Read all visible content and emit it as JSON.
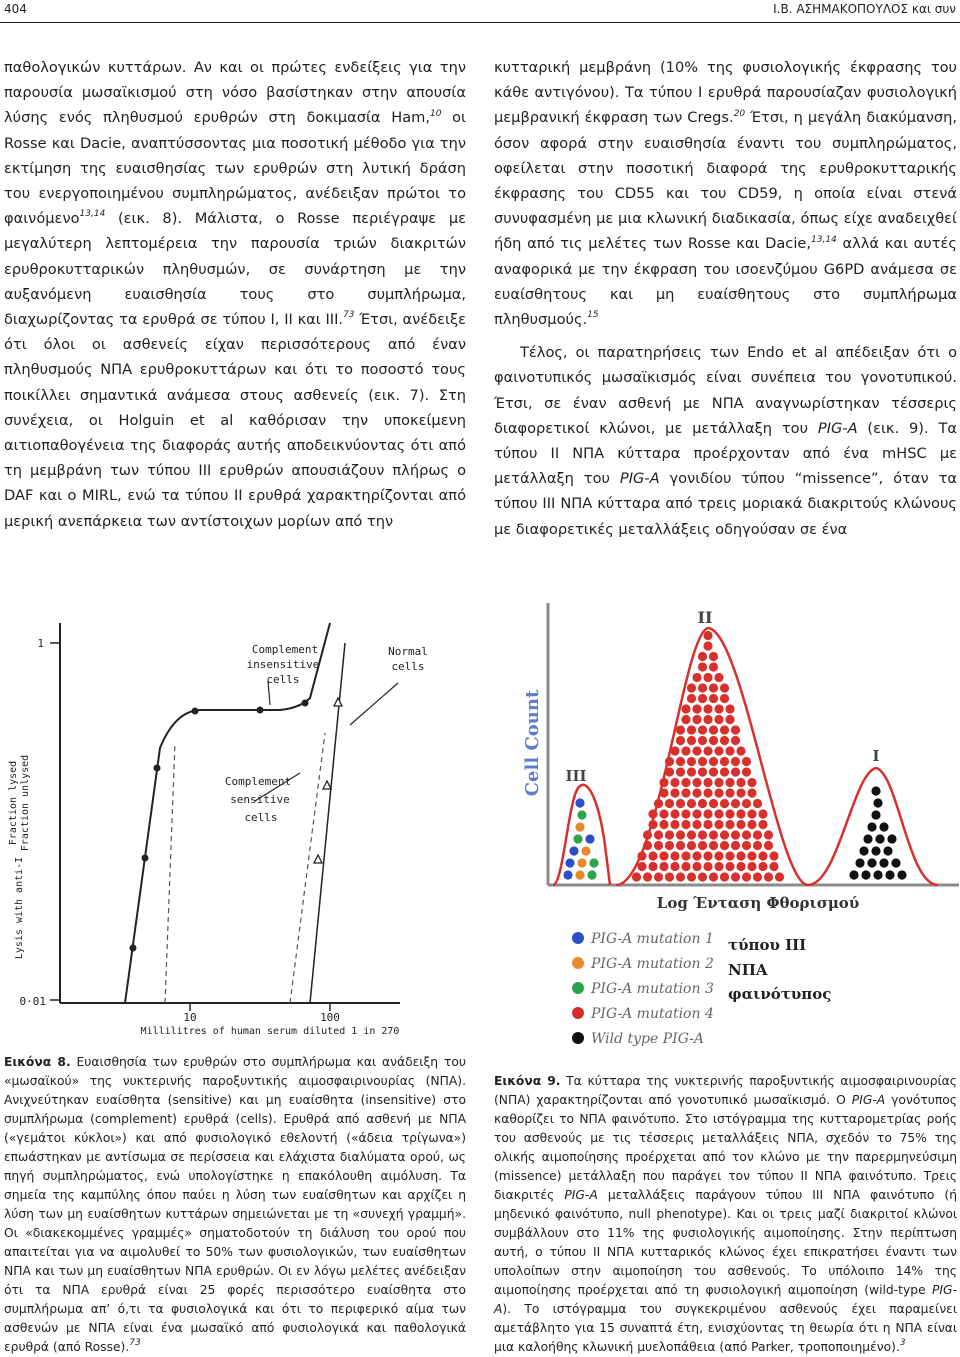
{
  "header": {
    "page_number": "404",
    "running_head": "Ι.Β. ΑΣΗΜΑΚΟΠΟΥΛΟΣ και συν"
  },
  "left_column": {
    "p1_a": "παθολογικών κυττάρων. Αν και οι πρώτες ενδείξεις για την παρουσία μωσαϊκισμού στη νόσο βασίστηκαν στην απουσία λύσης ενός πληθυσμού ερυθρών στη δοκιμασία Ham,",
    "p1_sup1": "10",
    "p1_b": " οι Rosse και Dacie, αναπτύσσοντας μια ποσοτική μέθοδο για την εκτίμηση της ευαισθησίας των ερυθρών στη λυτική δράση του ενεργοποιημένου συμπληρώματος, ανέδειξαν πρώτοι το φαινόμενο",
    "p1_sup2": "13,14",
    "p1_c": " (εικ. 8). Μάλιστα, ο Rosse περιέγραψε με μεγαλύτερη λεπτομέρεια την παρουσία τριών διακριτών ερυθροκυτταρικών πληθυσμών, σε συνάρτηση με την αυξανόμενη ευαισθησία τους στο συμπλήρωμα, διαχωρίζοντας τα ερυθρά σε τύπου I, II και III.",
    "p1_sup3": "73",
    "p1_d": " Έτσι, ανέδειξε ότι όλοι οι ασθενείς είχαν περισσότερους από έναν πληθυσμούς ΝΠΑ ερυθροκυττάρων και ότι το ποσοστό τους ποικίλλει σημαντικά ανάμεσα στους ασθενείς (εικ. 7). Στη συνέχεια, οι Holguin et al καθόρισαν την υποκείμενη αιτιοπαθογένεια της διαφοράς αυτής αποδεικνύοντας ότι από τη μεμβράνη των τύπου III ερυθρών απουσιάζουν πλήρως ο DAF και ο MIRL, ενώ τα τύπου II ερυθρά χαρακτηρίζονται από μερική ανεπάρκεια των αντίστοιχων μορίων από την"
  },
  "right_column": {
    "p1_a": "κυτταρική μεμβράνη (10% της φυσιολογικής έκφρασης του κάθε αντιγόνου). Τα τύπου I ερυθρά παρουσίαζαν φυσιολογική μεμβρανική έκφραση των Cregs.",
    "p1_sup1": "20",
    "p1_b": " Έτσι, η μεγάλη διακύμανση, όσον αφορά στην ευαισθησία έναντι του συμπληρώματος, οφείλεται στην ποσοτική διαφορά της ερυθροκυτταρικής έκφρασης του CD55 και του CD59, η οποία είναι στενά συνυφασμένη με μια κλωνική διαδικασία, όπως είχε αναδειχθεί ήδη από τις μελέτες των Rosse και Dacie,",
    "p1_sup2": "13,14",
    "p1_c": " αλλά και αυτές αναφορικά με την έκφραση του ισοενζύμου G6PD ανάμεσα σε ευαίσθητους και μη ευαίσθητους στο συμπλήρωμα πληθυσμούς.",
    "p1_sup3": "15",
    "p2_a": "Τέλος, οι παρατηρήσεις των Endo et al απέδειξαν ότι ο φαινοτυπικός μωσαϊκισμός είναι συνέπεια του γονοτυπικού. Έτσι, σε έναν ασθενή με ΝΠΑ αναγνωρίστηκαν τέσσερις διαφορετικοί κλώνοι, με μετάλλαξη του ",
    "p2_i1": "PIG-A",
    "p2_b": " (εικ. 9). Τα τύπου II ΝΠΑ κύτταρα προέρχονταν από ένα mHSC με μετάλλαξη του ",
    "p2_i2": "PIG-A",
    "p2_c": " γονιδίου τύπου “missence”, όταν τα τύπου III ΝΠΑ κύτταρα από τρεις μοριακά διακριτούς κλώνους με διαφορετικές μεταλλάξεις οδηγούσαν σε ένα"
  },
  "figure8": {
    "label_complement_insensitive": [
      "Complement",
      "insensitive",
      "cells"
    ],
    "label_normal": [
      "Normal",
      "cells"
    ],
    "label_complement_sensitive": [
      "Complement",
      "sensitive",
      "cells"
    ],
    "yaxis_fraction_lysed": "Fraction lysed",
    "yaxis_fraction_unlysed": "Fraction unlysed",
    "yaxis_lysis": "Lysis with anti-I",
    "tick_y_top": "1",
    "tick_y_bottom": "0·01",
    "tick_x_10": "10",
    "tick_x_100": "100",
    "xlabel": "Millilitres of human serum diluted 1 in 270"
  },
  "figure9": {
    "peak_iii": "III",
    "peak_ii": "II",
    "peak_i": "I",
    "ylabel": "Cell Count",
    "xlabel": "Log Ένταση Φθορισμού",
    "legend": [
      {
        "label": "PIG-A mutation 1",
        "color": "#2b4fc8"
      },
      {
        "label": "PIG-A mutation 2",
        "color": "#e98a2a"
      },
      {
        "label": "PIG-A mutation 3",
        "color": "#2aa54a"
      },
      {
        "label": "PIG-A mutation 4",
        "color": "#d42a2a"
      },
      {
        "label": "Wild type PIG-A",
        "color": "#111111"
      }
    ],
    "legend_note": [
      "τύπου III",
      "ΝΠΑ",
      "φαινότυπος"
    ],
    "colors": {
      "red": "#d8302c",
      "outline": "#d8302c",
      "axis": "#555555"
    }
  },
  "caption8": {
    "label": "Εικόνα 8.",
    "text": " Ευαισθησία των ερυθρών στο συμπλήρωμα και ανάδειξη του «μωσαϊκού» της νυκτερινής παροξυντικής αιμοσφαιρινουρίας (ΝΠΑ). Ανιχνεύτηκαν ευαίσθητα (sensitive) και μη ευαίσθητα (insensitive) στο συμπλήρωμα (complement) ερυθρά (cells). Ερυθρά από ασθενή με ΝΠΑ («γεμάτοι κύκλοι») και από φυσιολογικό εθελοντή («άδεια τρίγωνα») επωάστηκαν με αντίσωμα σε περίσσεια και ελάχιστα διαλύματα ορού, ως πηγή συμπληρώματος, ενώ υπολογίστηκε η επακόλουθη αιμόλυση. Τα σημεία της καμπύλης όπου παύει η λύση των ευαίσθητων και αρχίζει η λύση των μη ευαίσθητων κυττάρων σημειώνεται με τη «συνεχή γραμμή». Οι «διακεκομμένες γραμμές» σηματοδοτούν τη διάλυση του ορού που απαιτείται για να αιμολυθεί το 50% των φυσιολογικών, των ευαίσθητων ΝΠΑ και των μη ευαίσθητων ΝΠΑ ερυθρών. Οι εν λόγω μελέτες ανέδειξαν ότι τα ΝΠΑ ερυθρά είναι 25 φορές περισσότερο ευαίσθητα στο συμπλήρωμα απ’ ό,τι τα φυσιολογικά και ότι το περιφερικό αίμα των ασθενών με ΝΠΑ είναι ένα μωσαϊκό από φυσιολογικά και παθολογικά ερυθρά (από Rosse).",
    "sup": "73"
  },
  "caption9": {
    "label": "Εικόνα 9.",
    "t1": " Τα κύτταρα της νυκτερινής παροξυντικής αιμοσφαιρινουρίας (ΝΠΑ) χαρακτηρίζονται από γονοτυπικό μωσαϊκισμό. Ο ",
    "i1": "PIG-A",
    "t2": " γονότυπος καθορίζει το ΝΠΑ φαινότυπο. Στο ιστόγραμμα της κυτταρομετρίας ροής του ασθενούς με τις τέσσερις μεταλλάξεις ΝΠΑ, σχεδόν το 75% της ολικής αιμοποίησης προέρχεται από τον κλώνο με την παρερμηνεύσιμη (missence) μετάλλαξη που παράγει τον τύπου II ΝΠΑ φαινότυπο. Τρεις διακριτές ",
    "i2": "PIG-A",
    "t3": " μεταλλάξεις παράγουν τύπου III ΝΠΑ φαινότυπο (ή μηδενικό φαινότυπο, null phenotype). Και οι τρεις μαζί διακριτοί κλώνοι συμβάλλουν στο 11% της φυσιολογικής αιμοποίησης. Στην περίπτωση αυτή, ο τύπου II ΝΠΑ κυτταρικός κλώνος έχει επικρατήσει έναντι των υπολοίπων στην αιμοποίηση του ασθενούς. Το υπόλοιπο 14% της αιμοποίησης προέρχεται από τη φυσιολογική αιμοποίηση (wild-type ",
    "i3": "PIG-A",
    "t4": "). Το ιστόγραμμα του συγκεκριμένου ασθενούς έχει παραμείνει αμετάβλητο για 15 συναπτά έτη, ενισχύοντας τη θεωρία ότι η ΝΠΑ είναι μια καλοήθης κλωνική μυελοπάθεια (από Parker, τροποποιημένο).",
    "sup": "3"
  }
}
